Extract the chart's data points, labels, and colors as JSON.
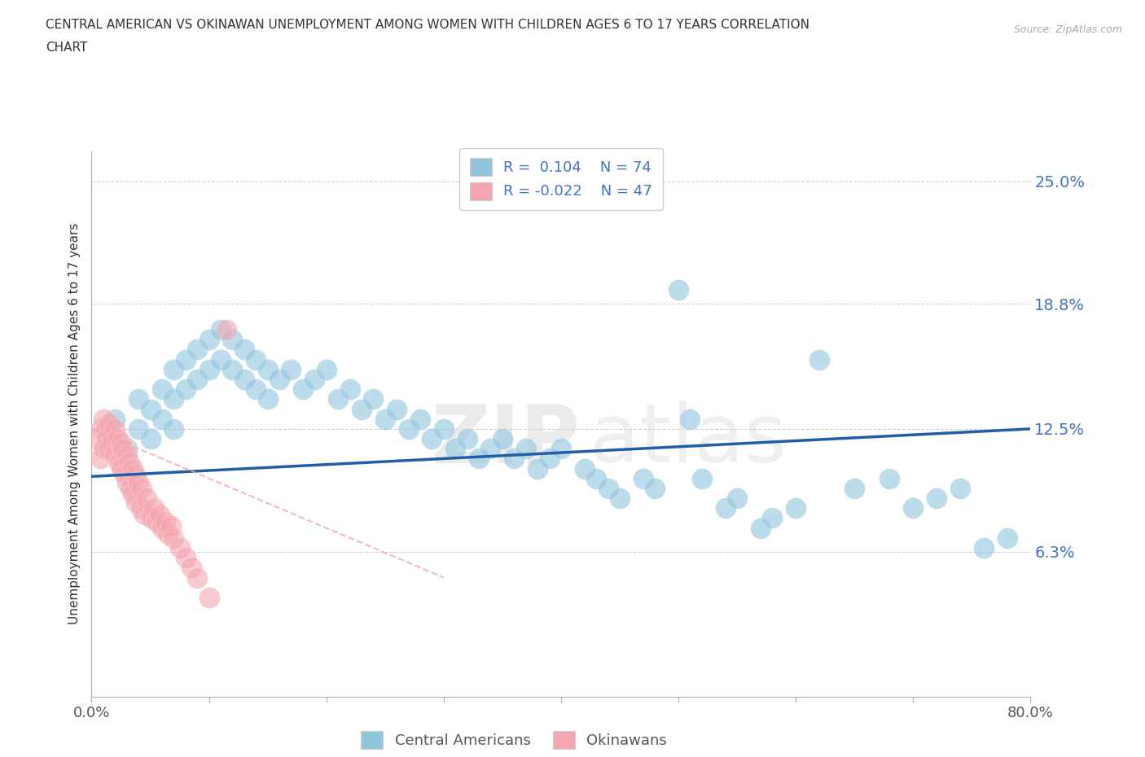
{
  "title_line1": "CENTRAL AMERICAN VS OKINAWAN UNEMPLOYMENT AMONG WOMEN WITH CHILDREN AGES 6 TO 17 YEARS CORRELATION",
  "title_line2": "CHART",
  "source_text": "Source: ZipAtlas.com",
  "ylabel": "Unemployment Among Women with Children Ages 6 to 17 years",
  "xlim": [
    0.0,
    0.8
  ],
  "ylim": [
    -0.01,
    0.265
  ],
  "yticks": [
    0.0,
    0.063,
    0.125,
    0.188,
    0.25
  ],
  "ytick_labels": [
    "",
    "6.3%",
    "12.5%",
    "18.8%",
    "25.0%"
  ],
  "xtick_labels": [
    "0.0%",
    "",
    "",
    "",
    "",
    "",
    "",
    "",
    "80.0%"
  ],
  "legend_r_blue": "0.104",
  "legend_n_blue": "74",
  "legend_r_pink": "-0.022",
  "legend_n_pink": "47",
  "blue_color": "#92c5de",
  "pink_color": "#f4a6b0",
  "trend_blue_color": "#1f5fa6",
  "trend_pink_color": "#f4a6b0",
  "watermark_zip": "ZIP",
  "watermark_atlas": "atlas",
  "blue_scatter_x": [
    0.02,
    0.03,
    0.04,
    0.04,
    0.05,
    0.05,
    0.06,
    0.06,
    0.07,
    0.07,
    0.07,
    0.08,
    0.08,
    0.09,
    0.09,
    0.1,
    0.1,
    0.11,
    0.11,
    0.12,
    0.12,
    0.13,
    0.13,
    0.14,
    0.14,
    0.15,
    0.15,
    0.16,
    0.17,
    0.18,
    0.19,
    0.2,
    0.21,
    0.22,
    0.23,
    0.24,
    0.25,
    0.26,
    0.27,
    0.28,
    0.29,
    0.3,
    0.31,
    0.32,
    0.33,
    0.34,
    0.35,
    0.36,
    0.37,
    0.38,
    0.39,
    0.4,
    0.42,
    0.43,
    0.44,
    0.45,
    0.47,
    0.48,
    0.5,
    0.51,
    0.52,
    0.54,
    0.55,
    0.57,
    0.58,
    0.6,
    0.62,
    0.65,
    0.68,
    0.7,
    0.72,
    0.74,
    0.76,
    0.78
  ],
  "blue_scatter_y": [
    0.13,
    0.115,
    0.125,
    0.14,
    0.135,
    0.12,
    0.145,
    0.13,
    0.155,
    0.14,
    0.125,
    0.16,
    0.145,
    0.165,
    0.15,
    0.17,
    0.155,
    0.175,
    0.16,
    0.17,
    0.155,
    0.165,
    0.15,
    0.16,
    0.145,
    0.155,
    0.14,
    0.15,
    0.155,
    0.145,
    0.15,
    0.155,
    0.14,
    0.145,
    0.135,
    0.14,
    0.13,
    0.135,
    0.125,
    0.13,
    0.12,
    0.125,
    0.115,
    0.12,
    0.11,
    0.115,
    0.12,
    0.11,
    0.115,
    0.105,
    0.11,
    0.115,
    0.105,
    0.1,
    0.095,
    0.09,
    0.1,
    0.095,
    0.195,
    0.13,
    0.1,
    0.085,
    0.09,
    0.075,
    0.08,
    0.085,
    0.16,
    0.095,
    0.1,
    0.085,
    0.09,
    0.095,
    0.065,
    0.07
  ],
  "pink_scatter_x": [
    0.005,
    0.007,
    0.008,
    0.01,
    0.01,
    0.012,
    0.013,
    0.015,
    0.015,
    0.017,
    0.018,
    0.02,
    0.02,
    0.022,
    0.023,
    0.025,
    0.025,
    0.027,
    0.028,
    0.03,
    0.03,
    0.032,
    0.033,
    0.035,
    0.035,
    0.037,
    0.038,
    0.04,
    0.042,
    0.043,
    0.045,
    0.047,
    0.05,
    0.053,
    0.055,
    0.058,
    0.06,
    0.063,
    0.065,
    0.068,
    0.07,
    0.075,
    0.08,
    0.085,
    0.09,
    0.1,
    0.115
  ],
  "pink_scatter_y": [
    0.12,
    0.11,
    0.125,
    0.13,
    0.115,
    0.125,
    0.12,
    0.128,
    0.115,
    0.122,
    0.118,
    0.125,
    0.112,
    0.12,
    0.108,
    0.118,
    0.105,
    0.115,
    0.102,
    0.112,
    0.098,
    0.108,
    0.095,
    0.105,
    0.092,
    0.102,
    0.088,
    0.098,
    0.085,
    0.095,
    0.082,
    0.09,
    0.08,
    0.085,
    0.078,
    0.082,
    0.075,
    0.078,
    0.072,
    0.076,
    0.07,
    0.065,
    0.06,
    0.055,
    0.05,
    0.04,
    0.175
  ],
  "blue_trend_x0": 0.0,
  "blue_trend_x1": 0.8,
  "blue_trend_y0": 0.101,
  "blue_trend_y1": 0.125,
  "pink_trend_x0": 0.0,
  "pink_trend_x1": 0.3,
  "pink_trend_y0": 0.125,
  "pink_trend_y1": 0.05
}
